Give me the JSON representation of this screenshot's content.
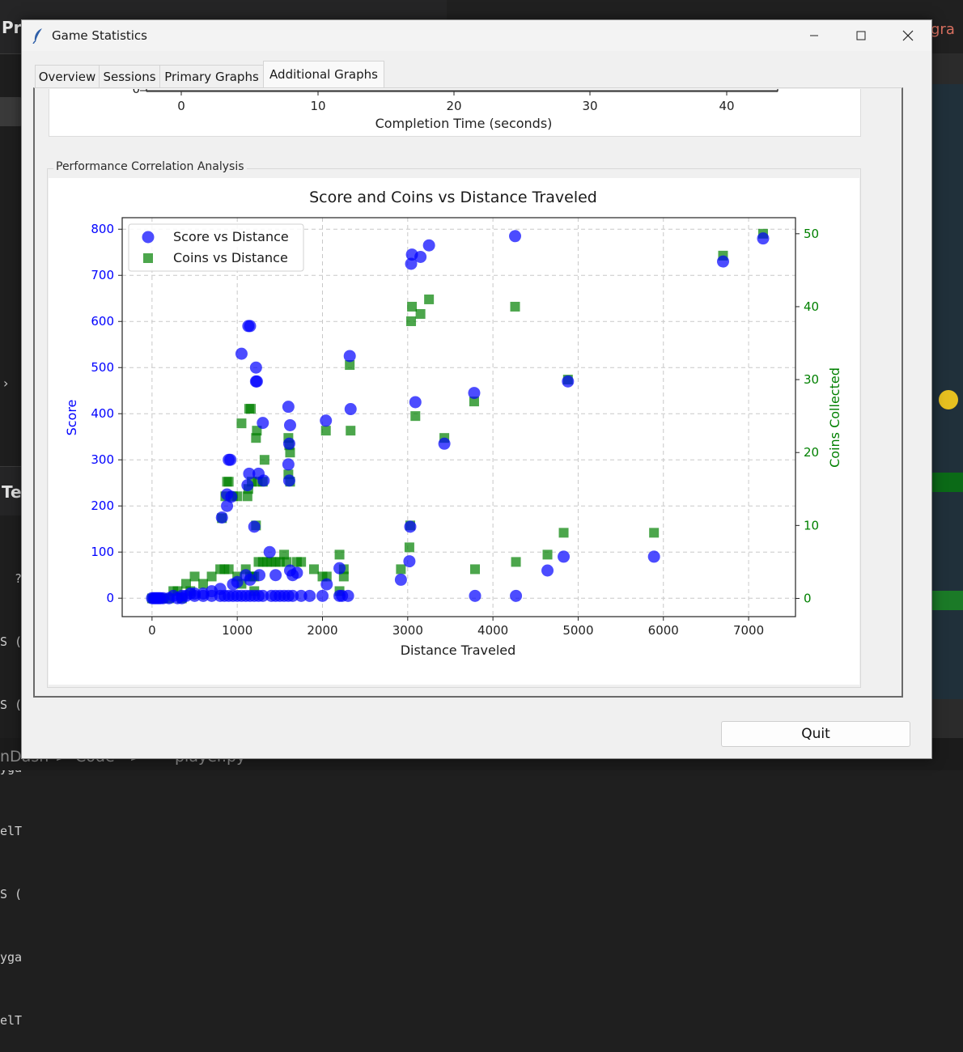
{
  "background": {
    "left_title": "Pr",
    "terminal_title": "Te",
    "terminal_lines": [
      "  ?",
      "S (",
      "S (",
      "yga",
      "elT",
      "S (",
      "yga",
      "elT"
    ],
    "right_title": "gra",
    "status_parts": [
      "nDash",
      ">",
      "Code",
      ">",
      "player.py"
    ]
  },
  "window": {
    "title": "Game Statistics",
    "controls": {
      "minimize": "minimize",
      "maximize": "maximize",
      "close": "close"
    }
  },
  "tabs": [
    {
      "label": "Overview",
      "active": false
    },
    {
      "label": "Sessions",
      "active": false
    },
    {
      "label": "Primary Graphs",
      "active": false
    },
    {
      "label": "Additional Graphs",
      "active": true
    }
  ],
  "top_chart": {
    "x_ticks": [
      "0",
      "10",
      "20",
      "30",
      "40"
    ],
    "y_tick": "0",
    "xlabel": "Completion Time (seconds)"
  },
  "section": {
    "label": "Performance Correlation Analysis"
  },
  "quit_label": "Quit",
  "chart_data": {
    "type": "scatter",
    "title": "Score and Coins vs Distance Traveled",
    "xlabel": "Distance Traveled",
    "ylabel_left": "Score",
    "ylabel_right": "Coins Collected",
    "xlim": [
      -350,
      7550
    ],
    "ylim_left": [
      -40,
      825
    ],
    "ylim_right": [
      -2.5,
      52.2
    ],
    "x_ticks": [
      0,
      1000,
      2000,
      3000,
      4000,
      5000,
      6000,
      7000
    ],
    "y_ticks_left": [
      0,
      100,
      200,
      300,
      400,
      500,
      600,
      700,
      800
    ],
    "y_ticks_right": [
      0,
      10,
      20,
      30,
      40,
      50
    ],
    "grid": true,
    "legend_position": "top-left",
    "colors": {
      "score": "#0000ff",
      "coins": "#008000",
      "left_axis": "#0000ff",
      "right_axis": "#008000"
    },
    "series": [
      {
        "name": "Score vs Distance",
        "marker": "circle",
        "axis": "left",
        "points": [
          [
            0,
            0
          ],
          [
            20,
            0
          ],
          [
            40,
            0
          ],
          [
            60,
            0
          ],
          [
            80,
            0
          ],
          [
            100,
            0
          ],
          [
            130,
            0
          ],
          [
            200,
            0
          ],
          [
            250,
            5
          ],
          [
            300,
            0
          ],
          [
            350,
            0
          ],
          [
            400,
            5
          ],
          [
            450,
            10
          ],
          [
            500,
            5
          ],
          [
            600,
            5
          ],
          [
            700,
            5
          ],
          [
            800,
            5
          ],
          [
            850,
            5
          ],
          [
            900,
            5
          ],
          [
            950,
            5
          ],
          [
            1000,
            5
          ],
          [
            1050,
            5
          ],
          [
            1100,
            5
          ],
          [
            1150,
            5
          ],
          [
            1200,
            5
          ],
          [
            1250,
            5
          ],
          [
            1300,
            5
          ],
          [
            1400,
            5
          ],
          [
            1450,
            5
          ],
          [
            1500,
            5
          ],
          [
            1550,
            5
          ],
          [
            1600,
            5
          ],
          [
            1650,
            5
          ],
          [
            1750,
            5
          ],
          [
            1850,
            5
          ],
          [
            2000,
            5
          ],
          [
            2200,
            5
          ],
          [
            2300,
            5
          ],
          [
            820,
            175
          ],
          [
            880,
            200
          ],
          [
            900,
            300
          ],
          [
            920,
            300
          ],
          [
            880,
            225
          ],
          [
            930,
            220
          ],
          [
            1050,
            530
          ],
          [
            1130,
            590
          ],
          [
            1150,
            590
          ],
          [
            1120,
            245
          ],
          [
            1140,
            270
          ],
          [
            1220,
            500
          ],
          [
            1220,
            470
          ],
          [
            1230,
            470
          ],
          [
            1250,
            270
          ],
          [
            1200,
            155
          ],
          [
            1260,
            50
          ],
          [
            1300,
            380
          ],
          [
            1310,
            255
          ],
          [
            1380,
            100
          ],
          [
            1450,
            50
          ],
          [
            1600,
            415
          ],
          [
            1620,
            375
          ],
          [
            1610,
            335
          ],
          [
            1600,
            290
          ],
          [
            1610,
            255
          ],
          [
            1620,
            60
          ],
          [
            1650,
            50
          ],
          [
            1700,
            55
          ],
          [
            2040,
            385
          ],
          [
            2050,
            30
          ],
          [
            2320,
            525
          ],
          [
            2330,
            410
          ],
          [
            2200,
            65
          ],
          [
            2230,
            5
          ],
          [
            1000,
            35
          ],
          [
            950,
            30
          ],
          [
            1100,
            50
          ],
          [
            1150,
            40
          ],
          [
            800,
            20
          ],
          [
            700,
            15
          ],
          [
            600,
            10
          ],
          [
            500,
            10
          ],
          [
            350,
            5
          ],
          [
            2920,
            40
          ],
          [
            3020,
            80
          ],
          [
            3030,
            155
          ],
          [
            3040,
            725
          ],
          [
            3050,
            745
          ],
          [
            3150,
            740
          ],
          [
            3250,
            765
          ],
          [
            3090,
            425
          ],
          [
            3430,
            335
          ],
          [
            3780,
            445
          ],
          [
            3790,
            5
          ],
          [
            4260,
            785
          ],
          [
            4270,
            5
          ],
          [
            4640,
            60
          ],
          [
            4830,
            90
          ],
          [
            4880,
            470
          ],
          [
            5890,
            90
          ],
          [
            6700,
            730
          ],
          [
            7170,
            780
          ]
        ]
      },
      {
        "name": "Coins vs Distance",
        "marker": "square",
        "axis": "right",
        "points": [
          [
            0,
            0
          ],
          [
            20,
            0
          ],
          [
            40,
            0
          ],
          [
            60,
            0
          ],
          [
            100,
            0
          ],
          [
            130,
            0
          ],
          [
            200,
            0
          ],
          [
            250,
            1
          ],
          [
            300,
            1
          ],
          [
            350,
            0
          ],
          [
            400,
            2
          ],
          [
            450,
            1
          ],
          [
            500,
            3
          ],
          [
            600,
            2
          ],
          [
            700,
            3
          ],
          [
            800,
            4
          ],
          [
            850,
            4
          ],
          [
            900,
            4
          ],
          [
            820,
            11
          ],
          [
            860,
            14
          ],
          [
            880,
            16
          ],
          [
            900,
            16
          ],
          [
            950,
            14
          ],
          [
            1000,
            14
          ],
          [
            1050,
            24
          ],
          [
            1120,
            14
          ],
          [
            1140,
            26
          ],
          [
            1160,
            26
          ],
          [
            1130,
            15
          ],
          [
            1170,
            16
          ],
          [
            1220,
            22
          ],
          [
            1230,
            23
          ],
          [
            1240,
            16
          ],
          [
            1300,
            16
          ],
          [
            1320,
            19
          ],
          [
            1220,
            10
          ],
          [
            1180,
            3
          ],
          [
            1200,
            3
          ],
          [
            1250,
            5
          ],
          [
            1300,
            5
          ],
          [
            1350,
            5
          ],
          [
            1400,
            5
          ],
          [
            1450,
            5
          ],
          [
            1500,
            5
          ],
          [
            1550,
            6
          ],
          [
            1580,
            5
          ],
          [
            1600,
            22
          ],
          [
            1620,
            20
          ],
          [
            1610,
            21
          ],
          [
            1600,
            17
          ],
          [
            1620,
            16
          ],
          [
            1700,
            5
          ],
          [
            1750,
            5
          ],
          [
            1900,
            4
          ],
          [
            2000,
            3
          ],
          [
            2050,
            3
          ],
          [
            2040,
            23
          ],
          [
            2200,
            6
          ],
          [
            2250,
            4
          ],
          [
            2320,
            32
          ],
          [
            2330,
            23
          ],
          [
            2200,
            1
          ],
          [
            2250,
            3
          ],
          [
            1000,
            3
          ],
          [
            1050,
            2
          ],
          [
            1100,
            4
          ],
          [
            1150,
            3
          ],
          [
            1200,
            1
          ],
          [
            2920,
            4
          ],
          [
            3020,
            7
          ],
          [
            3030,
            10
          ],
          [
            3040,
            38
          ],
          [
            3050,
            40
          ],
          [
            3150,
            39
          ],
          [
            3250,
            41
          ],
          [
            3090,
            25
          ],
          [
            3430,
            22
          ],
          [
            3780,
            27
          ],
          [
            3790,
            4
          ],
          [
            4260,
            40
          ],
          [
            4270,
            5
          ],
          [
            4640,
            6
          ],
          [
            4830,
            9
          ],
          [
            4880,
            30
          ],
          [
            5890,
            9
          ],
          [
            6700,
            47
          ],
          [
            7170,
            50
          ]
        ]
      }
    ]
  }
}
